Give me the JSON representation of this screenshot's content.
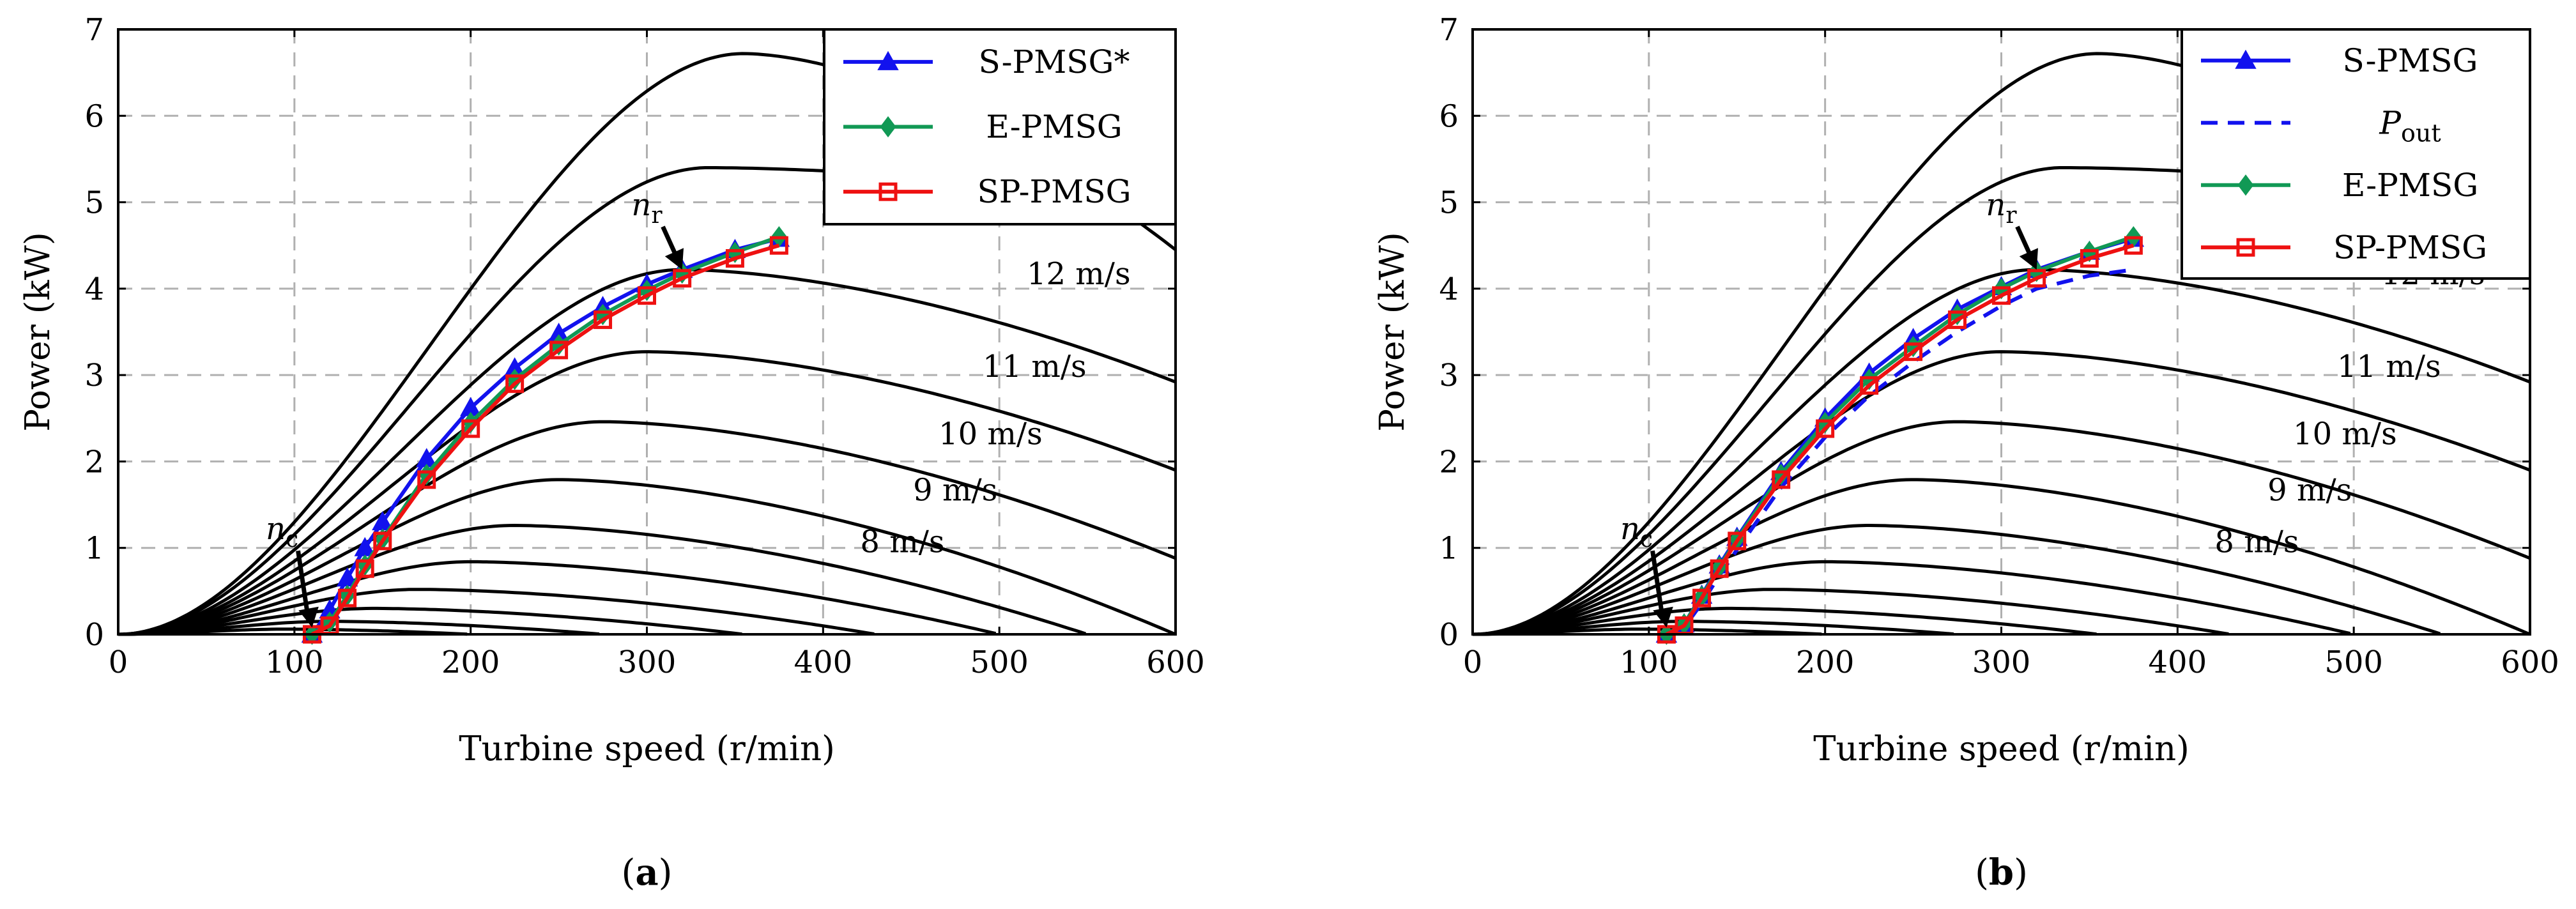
{
  "charts": [
    {
      "caption": "a",
      "xlabel": "Turbine speed (r/min)",
      "ylabel": "Power (kW)",
      "xlim": [
        0,
        600
      ],
      "ylim": [
        0,
        7
      ],
      "xticks": [
        0,
        100,
        200,
        300,
        400,
        500,
        600
      ],
      "yticks": [
        0,
        1,
        2,
        3,
        4,
        5,
        6,
        7
      ],
      "grid": true,
      "legend_position": "top-right",
      "legend": [
        {
          "label": "S-PMSG*",
          "color": "#1212ee",
          "marker": "triangle",
          "dash": false
        },
        {
          "label": "E-PMSG",
          "color": "#119955",
          "marker": "diamond",
          "dash": false
        },
        {
          "label": "SP-PMSG",
          "color": "#ee1111",
          "marker": "square",
          "dash": false
        }
      ],
      "wind_labels": [
        {
          "text": "12 m/s",
          "x": 545,
          "y": 4.05
        },
        {
          "text": "11 m/s",
          "x": 520,
          "y": 2.98
        },
        {
          "text": "10 m/s",
          "x": 495,
          "y": 2.2
        },
        {
          "text": "9 m/s",
          "x": 475,
          "y": 1.55
        },
        {
          "text": "8 m/s",
          "x": 445,
          "y": 0.95
        }
      ],
      "point_labels": [
        {
          "base": "n",
          "sub": "r",
          "x": 300,
          "y": 4.85,
          "arrow_to": [
            320,
            4.22
          ]
        },
        {
          "base": "n",
          "sub": "c",
          "x": 93,
          "y": 1.1,
          "arrow_to": [
            110,
            0.08
          ]
        }
      ]
    },
    {
      "caption": "b",
      "xlabel": "Turbine speed (r/min)",
      "ylabel": "Power (kW)",
      "xlim": [
        0,
        600
      ],
      "ylim": [
        0,
        7
      ],
      "xticks": [
        0,
        100,
        200,
        300,
        400,
        500,
        600
      ],
      "yticks": [
        0,
        1,
        2,
        3,
        4,
        5,
        6,
        7
      ],
      "grid": true,
      "legend_position": "top-right",
      "legend": [
        {
          "label": "S-PMSG",
          "color": "#1212ee",
          "marker": "triangle",
          "dash": false
        },
        {
          "label": "P",
          "sub": "out",
          "color": "#1212ee",
          "marker": "none",
          "dash": true
        },
        {
          "label": "E-PMSG",
          "color": "#119955",
          "marker": "diamond",
          "dash": false
        },
        {
          "label": "SP-PMSG",
          "color": "#ee1111",
          "marker": "square",
          "dash": false
        }
      ],
      "wind_labels": [
        {
          "text": "12 m/s",
          "x": 545,
          "y": 4.05
        },
        {
          "text": "11 m/s",
          "x": 520,
          "y": 2.98
        },
        {
          "text": "10 m/s",
          "x": 495,
          "y": 2.2
        },
        {
          "text": "9 m/s",
          "x": 475,
          "y": 1.55
        },
        {
          "text": "8 m/s",
          "x": 445,
          "y": 0.95
        }
      ],
      "point_labels": [
        {
          "base": "n",
          "sub": "r",
          "x": 300,
          "y": 4.85,
          "arrow_to": [
            320,
            4.22
          ]
        },
        {
          "base": "n",
          "sub": "c",
          "x": 93,
          "y": 1.1,
          "arrow_to": [
            110,
            0.08
          ]
        }
      ]
    }
  ],
  "chart_data": [
    {
      "type": "line",
      "xlabel": "Turbine speed (r/min)",
      "ylabel": "Power (kW)",
      "xlim": [
        0,
        600
      ],
      "ylim": [
        0,
        7
      ],
      "turbine_curves": [
        {
          "label": "",
          "peak_x": 355,
          "peak_y": 6.72,
          "end_x": 600,
          "end_y": 4.45
        },
        {
          "label": "",
          "peak_x": 335,
          "peak_y": 5.4,
          "end_x": 600,
          "end_y": 5.0
        },
        {
          "label": "12 m/s",
          "peak_x": 320,
          "peak_y": 4.22,
          "end_x": 600,
          "end_y": 2.92
        },
        {
          "label": "11 m/s",
          "peak_x": 300,
          "peak_y": 3.27,
          "end_x": 600,
          "end_y": 1.9
        },
        {
          "label": "10 m/s",
          "peak_x": 275,
          "peak_y": 2.46,
          "end_x": 600,
          "end_y": 0.88
        },
        {
          "label": "9 m/s",
          "peak_x": 250,
          "peak_y": 1.79,
          "end_x": 600,
          "end_y": 0.0
        },
        {
          "label": "8 m/s",
          "peak_x": 225,
          "peak_y": 1.26,
          "end_x": 550,
          "end_y": 0.0
        },
        {
          "label": "",
          "peak_x": 200,
          "peak_y": 0.84,
          "end_x": 500,
          "end_y": 0.0
        },
        {
          "label": "",
          "peak_x": 170,
          "peak_y": 0.52,
          "end_x": 430,
          "end_y": 0.0
        },
        {
          "label": "",
          "peak_x": 145,
          "peak_y": 0.3,
          "end_x": 355,
          "end_y": 0.0
        },
        {
          "label": "",
          "peak_x": 120,
          "peak_y": 0.15,
          "end_x": 275,
          "end_y": 0.0
        },
        {
          "label": "",
          "peak_x": 95,
          "peak_y": 0.06,
          "end_x": 200,
          "end_y": 0.0
        }
      ],
      "series": [
        {
          "name": "S-PMSG*",
          "x": [
            110,
            120,
            130,
            140,
            150,
            175,
            200,
            225,
            250,
            275,
            300,
            320,
            350,
            375
          ],
          "y": [
            0.0,
            0.28,
            0.65,
            1.0,
            1.3,
            2.03,
            2.62,
            3.08,
            3.48,
            3.79,
            4.05,
            4.22,
            4.45,
            4.58
          ]
        },
        {
          "name": "E-PMSG",
          "x": [
            110,
            120,
            130,
            140,
            150,
            175,
            200,
            225,
            250,
            275,
            300,
            320,
            350,
            375
          ],
          "y": [
            0.0,
            0.14,
            0.45,
            0.8,
            1.1,
            1.85,
            2.45,
            2.95,
            3.35,
            3.7,
            3.98,
            4.18,
            4.42,
            4.6
          ]
        },
        {
          "name": "SP-PMSG",
          "x": [
            110,
            120,
            130,
            140,
            150,
            175,
            200,
            225,
            250,
            275,
            300,
            320,
            350,
            375
          ],
          "y": [
            0.0,
            0.1,
            0.42,
            0.76,
            1.08,
            1.79,
            2.38,
            2.9,
            3.29,
            3.64,
            3.92,
            4.12,
            4.35,
            4.5
          ]
        }
      ]
    },
    {
      "type": "line",
      "xlabel": "Turbine speed (r/min)",
      "ylabel": "Power (kW)",
      "xlim": [
        0,
        600
      ],
      "ylim": [
        0,
        7
      ],
      "turbine_curves": [
        {
          "label": "",
          "peak_x": 355,
          "peak_y": 6.72,
          "end_x": 600,
          "end_y": 4.45
        },
        {
          "label": "",
          "peak_x": 335,
          "peak_y": 5.4,
          "end_x": 600,
          "end_y": 5.0
        },
        {
          "label": "12 m/s",
          "peak_x": 320,
          "peak_y": 4.22,
          "end_x": 600,
          "end_y": 2.92
        },
        {
          "label": "11 m/s",
          "peak_x": 300,
          "peak_y": 3.27,
          "end_x": 600,
          "end_y": 1.9
        },
        {
          "label": "10 m/s",
          "peak_x": 275,
          "peak_y": 2.46,
          "end_x": 600,
          "end_y": 0.88
        },
        {
          "label": "9 m/s",
          "peak_x": 250,
          "peak_y": 1.79,
          "end_x": 600,
          "end_y": 0.0
        },
        {
          "label": "8 m/s",
          "peak_x": 225,
          "peak_y": 1.26,
          "end_x": 550,
          "end_y": 0.0
        },
        {
          "label": "",
          "peak_x": 200,
          "peak_y": 0.84,
          "end_x": 500,
          "end_y": 0.0
        },
        {
          "label": "",
          "peak_x": 170,
          "peak_y": 0.52,
          "end_x": 430,
          "end_y": 0.0
        },
        {
          "label": "",
          "peak_x": 145,
          "peak_y": 0.3,
          "end_x": 355,
          "end_y": 0.0
        },
        {
          "label": "",
          "peak_x": 120,
          "peak_y": 0.15,
          "end_x": 275,
          "end_y": 0.0
        },
        {
          "label": "",
          "peak_x": 95,
          "peak_y": 0.06,
          "end_x": 200,
          "end_y": 0.0
        }
      ],
      "series": [
        {
          "name": "S-PMSG",
          "x": [
            110,
            120,
            130,
            140,
            150,
            175,
            200,
            225,
            250,
            275,
            300,
            320,
            350,
            375
          ],
          "y": [
            0.0,
            0.12,
            0.45,
            0.8,
            1.12,
            1.88,
            2.5,
            3.02,
            3.42,
            3.76,
            4.02,
            4.22,
            4.43,
            4.58
          ]
        },
        {
          "name": "P_out",
          "dash": true,
          "x": [
            110,
            120,
            130,
            140,
            150,
            175,
            200,
            225,
            250,
            275,
            300,
            320,
            350,
            375
          ],
          "y": [
            0.0,
            0.08,
            0.36,
            0.68,
            0.98,
            1.7,
            2.28,
            2.76,
            3.15,
            3.5,
            3.8,
            4.0,
            4.15,
            4.22
          ]
        },
        {
          "name": "E-PMSG",
          "x": [
            110,
            120,
            130,
            140,
            150,
            175,
            200,
            225,
            250,
            275,
            300,
            320,
            350,
            375
          ],
          "y": [
            0.0,
            0.12,
            0.44,
            0.78,
            1.1,
            1.85,
            2.45,
            2.95,
            3.33,
            3.7,
            4.0,
            4.2,
            4.43,
            4.6
          ]
        },
        {
          "name": "SP-PMSG",
          "x": [
            110,
            120,
            130,
            140,
            150,
            175,
            200,
            225,
            250,
            275,
            300,
            320,
            350,
            375
          ],
          "y": [
            0.0,
            0.1,
            0.42,
            0.76,
            1.08,
            1.79,
            2.38,
            2.88,
            3.27,
            3.64,
            3.92,
            4.12,
            4.35,
            4.5
          ]
        }
      ]
    }
  ]
}
